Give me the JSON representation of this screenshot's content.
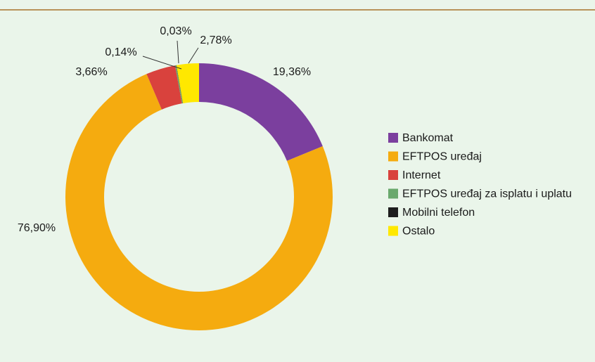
{
  "chart_data": {
    "type": "donut",
    "categories": [
      "Bankomat",
      "EFTPOS uređaj",
      "Internet",
      "EFTPOS uređaj za isplatu i uplatu",
      "Mobilni telefon",
      "Ostalo"
    ],
    "values": [
      19.36,
      76.9,
      3.66,
      0.14,
      0.03,
      2.78
    ],
    "value_labels": [
      "19,36%",
      "76,90%",
      "3,66%",
      "0,14%",
      "0,03%",
      "2,78%"
    ],
    "colors": [
      "#7b3f9e",
      "#f5ab0f",
      "#d9423d",
      "#6aa96d",
      "#1e1e1e",
      "#ffe800"
    ],
    "legend": "right"
  }
}
